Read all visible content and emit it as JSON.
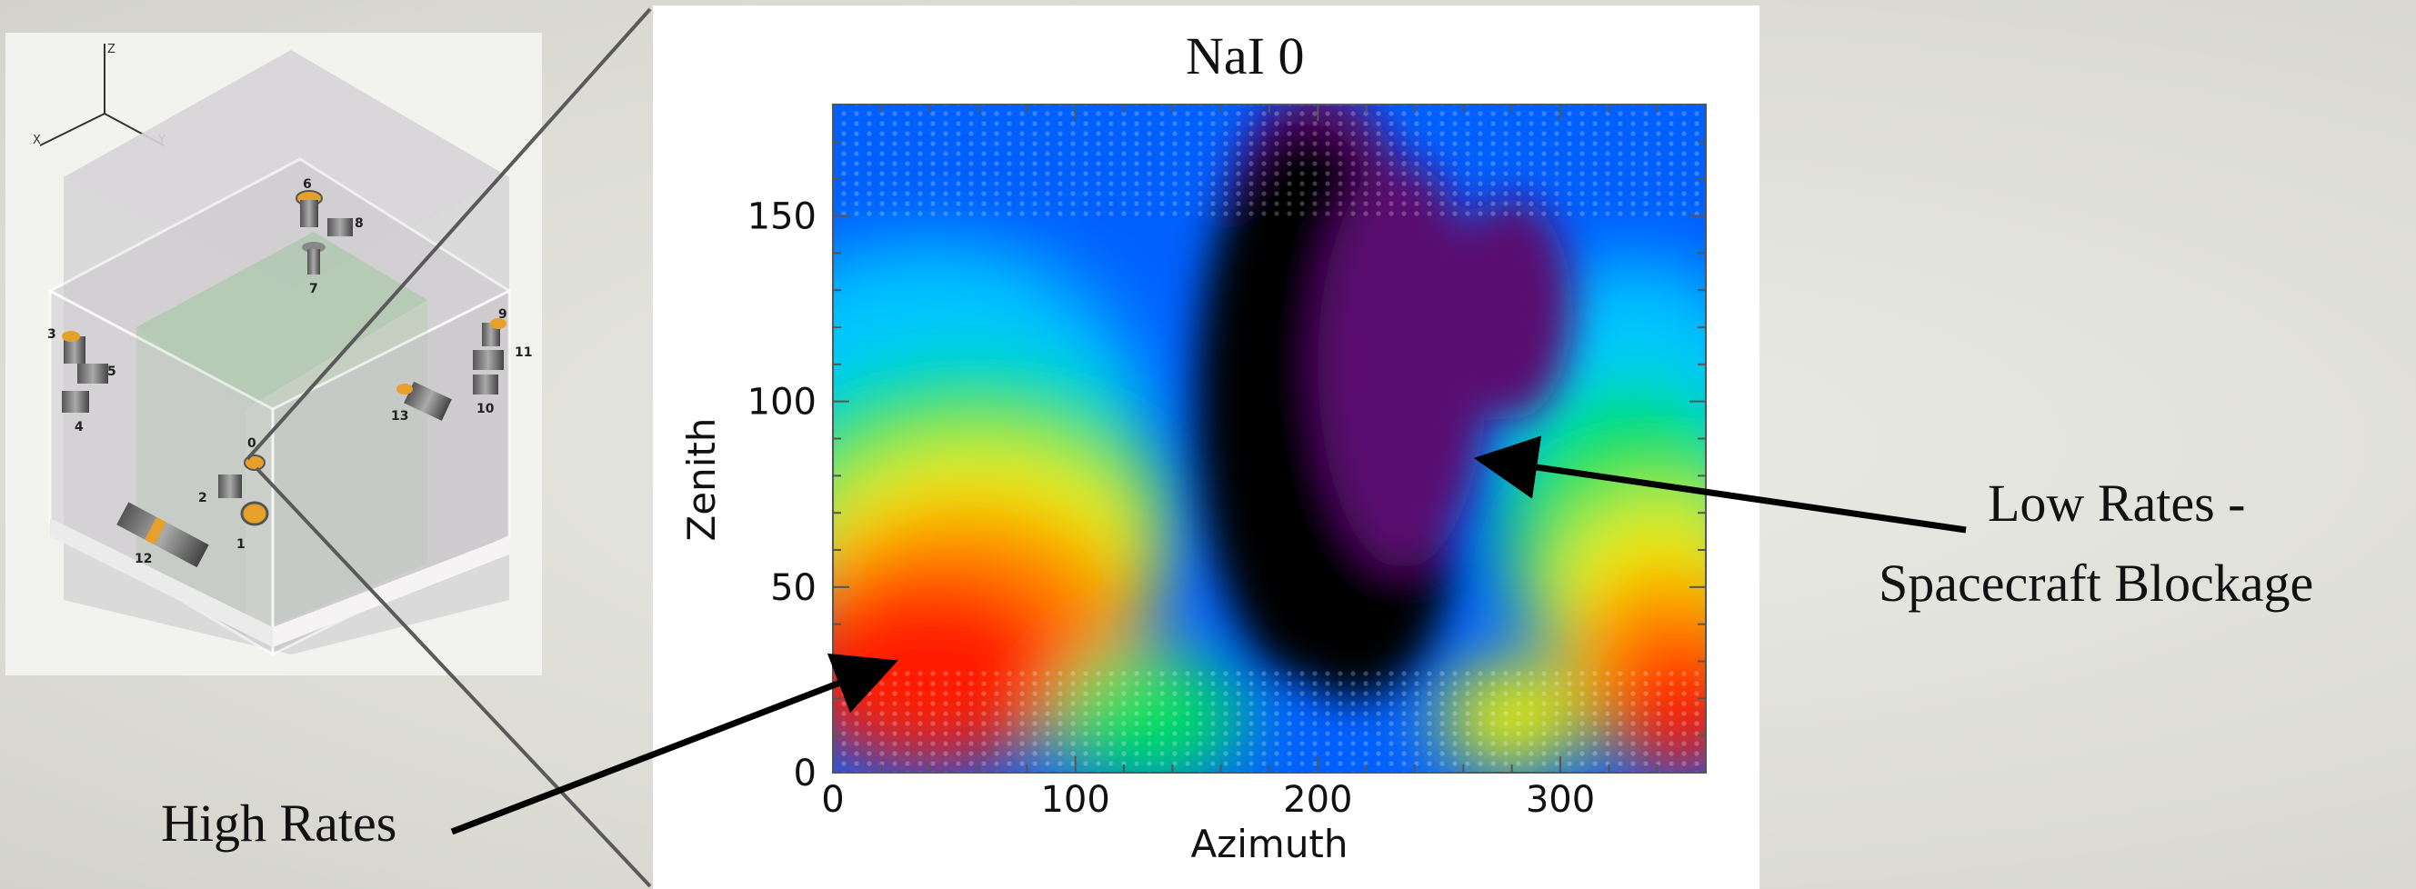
{
  "detector_diagram": {
    "axis_labels": [
      "Z",
      "X",
      "Y"
    ],
    "detector_numbers": [
      "0",
      "1",
      "2",
      "3",
      "4",
      "5",
      "6",
      "7",
      "8",
      "9",
      "10",
      "11",
      "12",
      "13"
    ],
    "accent_color": "#e7a12b"
  },
  "chart_data": {
    "type": "heatmap",
    "title": "NaI 0",
    "xlabel": "Azimuth",
    "ylabel": "Zenith",
    "xlim": [
      0,
      360
    ],
    "ylim": [
      0,
      180
    ],
    "x_ticks": [
      0,
      100,
      200,
      300
    ],
    "y_ticks": [
      0,
      50,
      100,
      150
    ],
    "colormap": [
      "#000000",
      "#5a1070",
      "#3a22d0",
      "#0060ff",
      "#00c8ff",
      "#00e060",
      "#e8f000",
      "#ff8a00",
      "#ff1a00"
    ],
    "rate_field_description": "highest rates near azimuth 40 and zenith 40; lowest rates in azimuth 170–260 (blockage); blue–purple band at zenith 100–180",
    "annotations": [
      {
        "text": "High Rates",
        "azimuth": 25,
        "zenith": 30
      },
      {
        "text": "Low Rates -",
        "azimuth": 265,
        "zenith": 85
      },
      {
        "text": "Spacecraft Blockage",
        "azimuth": 265,
        "zenith": 85
      }
    ]
  },
  "annotations": {
    "high": "High Rates",
    "low_line1": "Low Rates -",
    "low_line2": "Spacecraft Blockage"
  },
  "colors": {
    "background": "#e3e3dd",
    "arrow": "#000000"
  }
}
